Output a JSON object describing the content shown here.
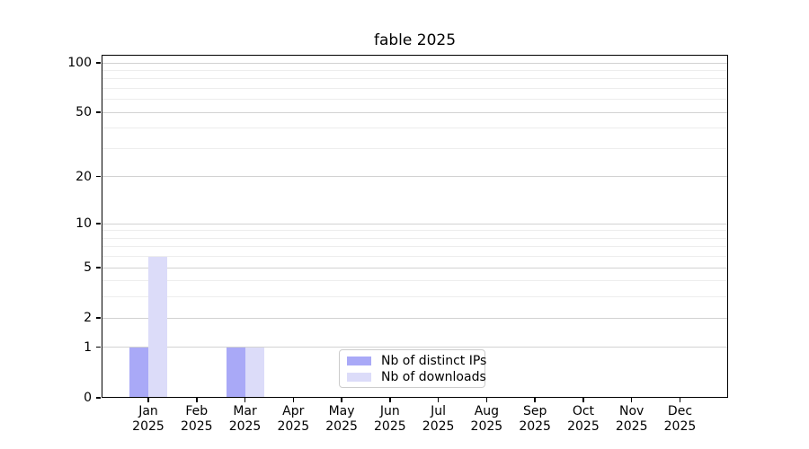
{
  "title": "fable 2025",
  "chart_data": {
    "type": "bar",
    "title": "fable 2025",
    "y_scale": "log1p",
    "categories": [
      "Jan 2025",
      "Feb 2025",
      "Mar 2025",
      "Apr 2025",
      "May 2025",
      "Jun 2025",
      "Jul 2025",
      "Aug 2025",
      "Sep 2025",
      "Oct 2025",
      "Nov 2025",
      "Dec 2025"
    ],
    "x_tick_months": [
      "Jan",
      "Feb",
      "Mar",
      "Apr",
      "May",
      "Jun",
      "Jul",
      "Aug",
      "Sep",
      "Oct",
      "Nov",
      "Dec"
    ],
    "x_tick_year": "2025",
    "series": [
      {
        "name": "Nb of distinct IPs",
        "color": "#a9a9f7",
        "values": [
          1,
          0,
          1,
          0,
          0,
          0,
          0,
          0,
          0,
          0,
          0,
          0
        ]
      },
      {
        "name": "Nb of downloads",
        "color": "#dcdcf9",
        "values": [
          6,
          0,
          1,
          0,
          0,
          0,
          0,
          0,
          0,
          0,
          0,
          0
        ]
      }
    ],
    "y_ticks": [
      0,
      1,
      2,
      5,
      10,
      20,
      50,
      100
    ],
    "y_grid_major": [
      1,
      2,
      5,
      10,
      20,
      50,
      100
    ],
    "y_grid_minor": [
      3,
      4,
      6,
      7,
      8,
      9,
      30,
      40,
      60,
      70,
      80,
      90
    ],
    "ylim": [
      0,
      112
    ],
    "xlabel": "",
    "ylabel": "",
    "legend_position": "lower center",
    "grid": true
  },
  "colors": {
    "bar_distinct_ips": "#a9a9f7",
    "bar_downloads": "#dcdcf9",
    "grid_major": "#d2d2d2",
    "grid_minor": "#ededed",
    "spine": "#000000",
    "legend_border": "#cccccc",
    "background": "#ffffff"
  }
}
